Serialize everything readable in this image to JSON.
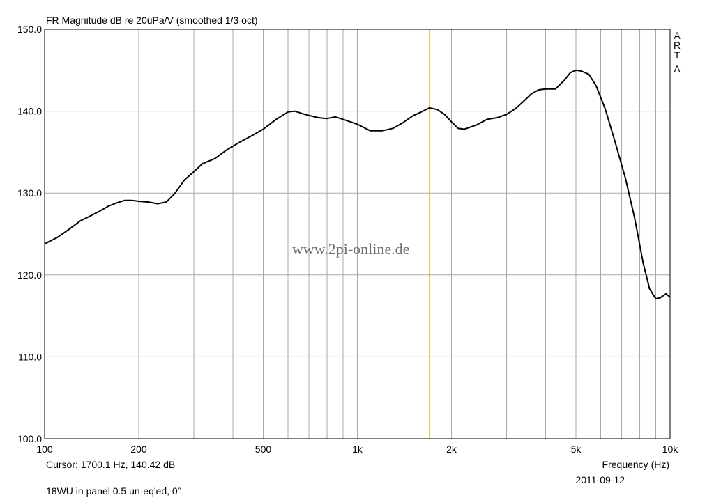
{
  "chart_data": {
    "type": "line",
    "title": "FR Magnitude dB re 20uPa/V (smoothed 1/3 oct)",
    "xlabel": "Frequency (Hz)",
    "ylabel": "",
    "xscale": "log",
    "xlim": [
      100,
      10000
    ],
    "ylim": [
      100,
      150
    ],
    "grid": true,
    "x_ticks": [
      100,
      200,
      500,
      1000,
      2000,
      5000,
      10000
    ],
    "x_tick_labels": [
      "100",
      "200",
      "500",
      "1k",
      "2k",
      "5k",
      "10k"
    ],
    "y_ticks": [
      100,
      110,
      120,
      130,
      140,
      150
    ],
    "y_tick_labels": [
      "100.0",
      "110.0",
      "120.0",
      "130.0",
      "140.0",
      "150.0"
    ],
    "cursor": {
      "x": 1700.1,
      "color": "#d4b11a"
    },
    "series": [
      {
        "color": "#000000",
        "points": [
          [
            100,
            123.8
          ],
          [
            110,
            124.6
          ],
          [
            120,
            125.6
          ],
          [
            130,
            126.6
          ],
          [
            140,
            127.2
          ],
          [
            150,
            127.8
          ],
          [
            160,
            128.4
          ],
          [
            170,
            128.8
          ],
          [
            180,
            129.1
          ],
          [
            190,
            129.1
          ],
          [
            200,
            129.0
          ],
          [
            215,
            128.9
          ],
          [
            230,
            128.7
          ],
          [
            245,
            128.9
          ],
          [
            260,
            129.9
          ],
          [
            280,
            131.6
          ],
          [
            300,
            132.6
          ],
          [
            320,
            133.6
          ],
          [
            350,
            134.2
          ],
          [
            380,
            135.2
          ],
          [
            420,
            136.2
          ],
          [
            460,
            137.0
          ],
          [
            500,
            137.8
          ],
          [
            550,
            139.0
          ],
          [
            600,
            139.9
          ],
          [
            630,
            140.0
          ],
          [
            680,
            139.6
          ],
          [
            750,
            139.2
          ],
          [
            800,
            139.1
          ],
          [
            850,
            139.3
          ],
          [
            900,
            139.0
          ],
          [
            1000,
            138.4
          ],
          [
            1100,
            137.6
          ],
          [
            1200,
            137.6
          ],
          [
            1300,
            137.9
          ],
          [
            1400,
            138.6
          ],
          [
            1500,
            139.4
          ],
          [
            1600,
            139.9
          ],
          [
            1700,
            140.4
          ],
          [
            1800,
            140.2
          ],
          [
            1900,
            139.6
          ],
          [
            2000,
            138.7
          ],
          [
            2100,
            137.9
          ],
          [
            2200,
            137.8
          ],
          [
            2400,
            138.3
          ],
          [
            2600,
            139.0
          ],
          [
            2800,
            139.2
          ],
          [
            3000,
            139.6
          ],
          [
            3200,
            140.3
          ],
          [
            3400,
            141.2
          ],
          [
            3600,
            142.1
          ],
          [
            3800,
            142.6
          ],
          [
            4000,
            142.7
          ],
          [
            4300,
            142.7
          ],
          [
            4600,
            143.8
          ],
          [
            4800,
            144.7
          ],
          [
            5000,
            145.0
          ],
          [
            5200,
            144.9
          ],
          [
            5500,
            144.5
          ],
          [
            5800,
            143.1
          ],
          [
            6200,
            140.3
          ],
          [
            6700,
            136.0
          ],
          [
            7200,
            131.8
          ],
          [
            7700,
            127.0
          ],
          [
            8200,
            121.5
          ],
          [
            8600,
            118.3
          ],
          [
            9000,
            117.1
          ],
          [
            9300,
            117.2
          ],
          [
            9700,
            117.7
          ],
          [
            10000,
            117.3
          ]
        ]
      }
    ]
  },
  "cursor_readout": "Cursor: 1700.1 Hz, 140.42 dB",
  "date": "2011-09-12",
  "footnote": "18WU in panel 0.5 un-eq'ed, 0°",
  "watermark": "www.2pi-online.de",
  "side_label": [
    "A",
    "R",
    "T",
    "A"
  ],
  "colors": {
    "grid": "#a8a8a8",
    "border": "#000000",
    "curve": "#000000",
    "cursor": "#d4b11a",
    "watermark": "#6e6e6e"
  }
}
